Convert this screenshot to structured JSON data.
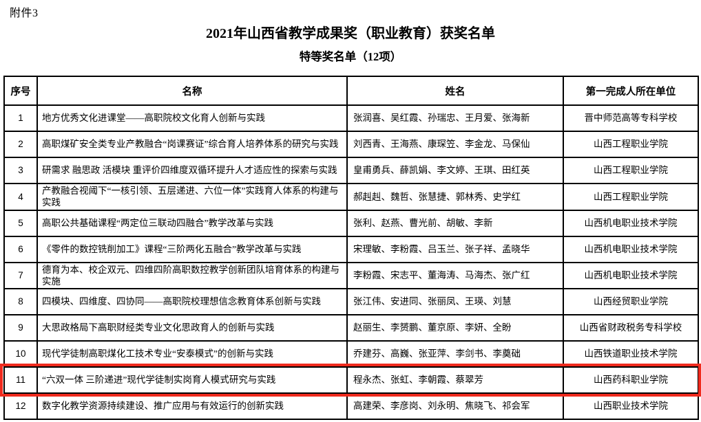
{
  "doc": {
    "attachment_label": "附件3",
    "title": "2021年山西省教学成果奖（职业教育）获奖名单",
    "subtitle": "特等奖名单（12项）"
  },
  "highlight": {
    "color": "#f02b1e",
    "highlighted_row_no": "11"
  },
  "table": {
    "columns": [
      "序号",
      "名称",
      "姓名",
      "第一完成人所在单位"
    ],
    "rows": [
      {
        "no": "1",
        "title": "地方优秀文化进课堂——高职院校文化育人创新与实践",
        "names": "张润喜、吴红霞、孙瑞忠、王月爱、张海新",
        "unit": "晋中师范高等专科学校",
        "highlighted": false
      },
      {
        "no": "2",
        "title": "高职煤矿安全类专业产教融合“岗课赛证”综合育人培养体系的研究与实践",
        "names": "刘西青、王海燕、康琛笠、李金龙、马保仙",
        "unit": "山西工程职业学院",
        "highlighted": false
      },
      {
        "no": "3",
        "title": "研需求 融思政 活模块 重评价四维度双循环提升人才适应性的探索与实践",
        "names": "皇甫勇兵、薛凯娟、李文婷、王琪、田红英",
        "unit": "山西工程职业学院",
        "highlighted": false
      },
      {
        "no": "4",
        "title": "产教融合视阈下“一核引领、五层递进、六位一体”实践育人体系的构建与实践",
        "names": "郝赳赳、魏哲、张慧捷、郭林秀、史学红",
        "unit": "山西工程职业学院",
        "highlighted": false
      },
      {
        "no": "5",
        "title": "高职公共基础课程“两定位三联动四融合”教学改革与实践",
        "names": "张利、赵燕、曹光前、胡敏、李新",
        "unit": "山西机电职业技术学院",
        "highlighted": false
      },
      {
        "no": "6",
        "title": "《零件的数控铣削加工》课程“三阶两化五融合”教学改革与实践",
        "names": "宋理敏、李粉霞、吕玉兰、张子祥、孟晓华",
        "unit": "山西机电职业技术学院",
        "highlighted": false
      },
      {
        "no": "7",
        "title": "德育为本、校企双元、四维四阶高职数控教学创新团队培育体系的构建与实施",
        "names": "李粉霞、宋志平、董海涛、马海杰、张广红",
        "unit": "山西机电职业技术学院",
        "highlighted": false
      },
      {
        "no": "8",
        "title": "四模块、四维度、四协同——高职院校理想信念教育体系创新与实践",
        "names": "张江伟、安进同、张丽凤、王瑛、刘慧",
        "unit": "山西经贸职业学院",
        "highlighted": false
      },
      {
        "no": "9",
        "title": "大思政格局下高职财经类专业文化思政育人的创新与实践",
        "names": "赵丽生、李赟鹏、董京原、李妍、全盼",
        "unit": "山西省财政税务专科学校",
        "highlighted": false
      },
      {
        "no": "10",
        "title": "现代学徒制高职煤化工技术专业“安泰模式”的创新与实践",
        "names": "乔建芬、高巍、张亚萍、李剑书、李奠础",
        "unit": "山西铁道职业技术学院",
        "highlighted": false
      },
      {
        "no": "11",
        "title": "“六双一体 三阶递进”现代学徒制实岗育人模式研究与实践",
        "names": "程永杰、张虹、李朝霞、蔡翠芳",
        "unit": "山西药科职业学院",
        "highlighted": true
      },
      {
        "no": "12",
        "title": "数字化教学资源持续建设、推广应用与有效运行的创新实践",
        "names": "高建荣、李彦岗、刘永明、焦晓飞、祁会军",
        "unit": "山西职业技术学院",
        "highlighted": false
      }
    ]
  }
}
